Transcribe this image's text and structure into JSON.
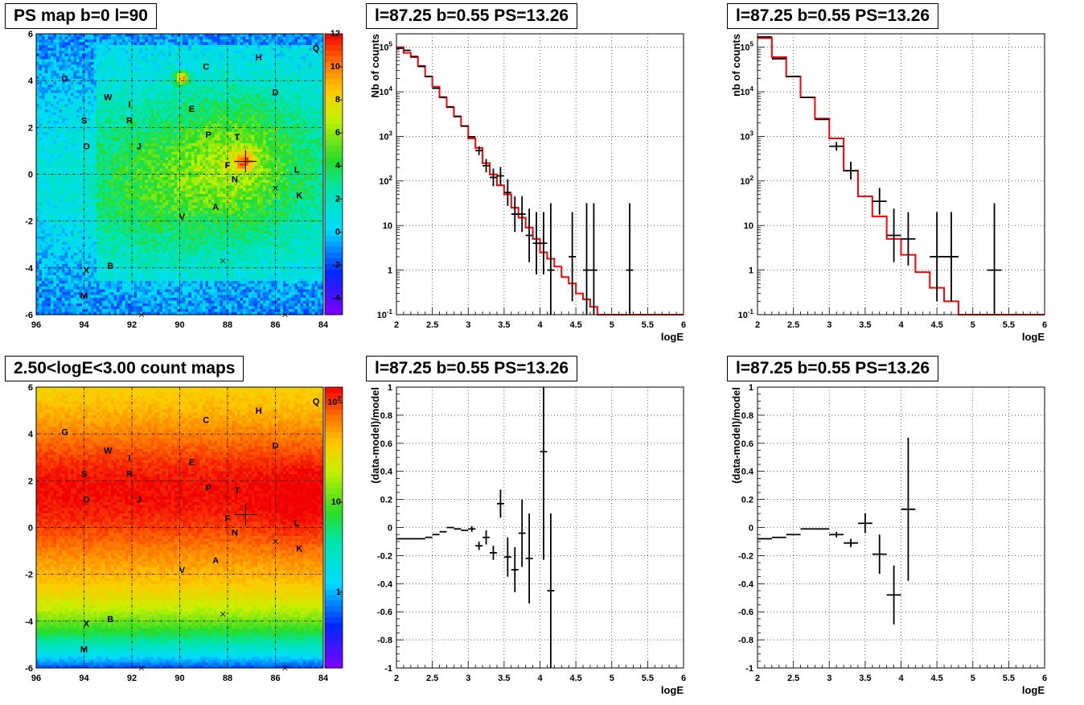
{
  "titles": {
    "map_top": "PS map b=0 l=90",
    "spec_top1": "l=87.25 b=0.55 PS=13.26",
    "spec_top2": "l=87.25 b=0.55 PS=13.26",
    "map_bottom": "2.50<logE<3.00 count maps",
    "res_bot1": "l=87.25 b=0.55 PS=13.26",
    "res_bot2": "l=87.25 b=0.55 PS=13.26"
  },
  "colors": {
    "model": "#ff0000",
    "data": "#000000",
    "frame": "#000000"
  },
  "chart_data": [
    {
      "type": "heatmap",
      "panel": "map_top",
      "title": "PS map b=0 l=90",
      "xlim": [
        96,
        84
      ],
      "ylim": [
        -6,
        6
      ],
      "xticks": [
        "96",
        "94",
        "92",
        "90",
        "88",
        "86",
        "84"
      ],
      "yticks": [
        "-6",
        "-4",
        "-2",
        "0",
        "2",
        "4",
        "6"
      ],
      "zlim": [
        -5,
        12
      ],
      "zticks": [
        "-4",
        "-2",
        "0",
        "2",
        "4",
        "6",
        "8",
        "10",
        "12"
      ],
      "sources": [
        {
          "label": "G",
          "l": 94.8,
          "b": 4.1
        },
        {
          "label": "C",
          "l": 88.9,
          "b": 4.6
        },
        {
          "label": "H",
          "l": 86.7,
          "b": 5.0
        },
        {
          "label": "Q",
          "l": 84.3,
          "b": 5.4
        },
        {
          "label": "W",
          "l": 93.0,
          "b": 3.3
        },
        {
          "label": "I",
          "l": 92.1,
          "b": 3.0
        },
        {
          "label": "E",
          "l": 89.5,
          "b": 2.8
        },
        {
          "label": "D",
          "l": 86.0,
          "b": 3.5
        },
        {
          "label": "S",
          "l": 94.0,
          "b": 2.3
        },
        {
          "label": "R",
          "l": 92.1,
          "b": 2.3
        },
        {
          "label": "P",
          "l": 88.8,
          "b": 1.7
        },
        {
          "label": "T",
          "l": 87.6,
          "b": 1.6
        },
        {
          "label": "O",
          "l": 93.9,
          "b": 1.2
        },
        {
          "label": "J",
          "l": 91.7,
          "b": 1.2
        },
        {
          "label": "F",
          "l": 88.0,
          "b": 0.4
        },
        {
          "label": "L",
          "l": 85.1,
          "b": 0.2
        },
        {
          "label": "N",
          "l": 87.7,
          "b": -0.2
        },
        {
          "label": "K",
          "l": 85.0,
          "b": -0.9
        },
        {
          "label": "A",
          "l": 88.5,
          "b": -1.4
        },
        {
          "label": "V",
          "l": 89.9,
          "b": -1.8
        },
        {
          "label": "B",
          "l": 92.9,
          "b": -3.9
        },
        {
          "label": "X",
          "l": 93.9,
          "b": -4.1
        },
        {
          "label": "M",
          "l": 94.0,
          "b": -5.2
        }
      ],
      "hot_spots": [
        {
          "l": 89.9,
          "b": 4.1
        }
      ]
    },
    {
      "type": "line",
      "panel": "spec_top1",
      "title": "l=87.25 b=0.55 PS=13.26",
      "xlabel": "logE",
      "ylabel": "Nb of counts",
      "xlim": [
        2,
        6
      ],
      "ylim": [
        0.1,
        200000
      ],
      "yscale": "log",
      "xticks": [
        "2",
        "2.5",
        "3",
        "3.5",
        "4",
        "4.5",
        "5",
        "5.5",
        "6"
      ],
      "yticks": [
        "10^-1",
        "1",
        "10",
        "10^2",
        "10^3",
        "10^4",
        "10^5"
      ],
      "model": {
        "edges": [
          2,
          2.1,
          2.2,
          2.3,
          2.4,
          2.5,
          2.6,
          2.7,
          2.8,
          2.9,
          3.0,
          3.1,
          3.2,
          3.3,
          3.4,
          3.5,
          3.6,
          3.7,
          3.8,
          3.9,
          4.0,
          4.1,
          4.2,
          4.3,
          4.4,
          4.5,
          4.6,
          4.7,
          4.8,
          4.9,
          5.0,
          6.0
        ],
        "values": [
          100000,
          75000,
          60000,
          38000,
          22000,
          13000,
          7500,
          4500,
          2800,
          1700,
          900,
          550,
          250,
          140,
          80,
          50,
          25,
          15,
          9,
          5,
          2.5,
          1.8,
          1.2,
          0.7,
          0.5,
          0.3,
          0.22,
          0.15,
          0.1,
          0.1,
          0.1
        ]
      },
      "data": [
        {
          "x": 2.05,
          "y": 95000,
          "dx": 0.05,
          "dy": 0.0
        },
        {
          "x": 2.15,
          "y": 85000,
          "dx": 0.05,
          "dy": 0.0
        },
        {
          "x": 2.25,
          "y": 62000,
          "dx": 0.05,
          "dy": 0.0
        },
        {
          "x": 2.35,
          "y": 37000,
          "dx": 0.05,
          "dy": 0.0
        },
        {
          "x": 2.45,
          "y": 22000,
          "dx": 0.05,
          "dy": 0.0
        },
        {
          "x": 2.55,
          "y": 12000,
          "dx": 0.05,
          "dy": 0.0
        },
        {
          "x": 2.65,
          "y": 7600,
          "dx": 0.05,
          "dy": 0.0
        },
        {
          "x": 2.75,
          "y": 4600,
          "dx": 0.05,
          "dy": 0.0
        },
        {
          "x": 2.85,
          "y": 2800,
          "dx": 0.05,
          "dy": 0.0
        },
        {
          "x": 2.95,
          "y": 1700,
          "dx": 0.05,
          "dy": 0.0
        },
        {
          "x": 3.05,
          "y": 980,
          "dx": 0.05,
          "dy": 0.0
        },
        {
          "x": 3.15,
          "y": 480,
          "dx": 0.05,
          "dy": 0.1
        },
        {
          "x": 3.25,
          "y": 220,
          "dx": 0.05,
          "dy": 0.15
        },
        {
          "x": 3.35,
          "y": 120,
          "dx": 0.05,
          "dy": 0.2
        },
        {
          "x": 3.45,
          "y": 130,
          "dx": 0.05,
          "dy": 0.2
        },
        {
          "x": 3.55,
          "y": 55,
          "dx": 0.05,
          "dy": 0.3
        },
        {
          "x": 3.65,
          "y": 18,
          "dx": 0.05,
          "dy": 0.4
        },
        {
          "x": 3.75,
          "y": 18,
          "dx": 0.05,
          "dy": 0.4
        },
        {
          "x": 3.85,
          "y": 6,
          "dx": 0.05,
          "dy": 0.6
        },
        {
          "x": 3.95,
          "y": 4,
          "dx": 0.05,
          "dy": 0.7
        },
        {
          "x": 4.05,
          "y": 4,
          "dx": 0.05,
          "dy": 0.7
        },
        {
          "x": 4.15,
          "y": 1,
          "dx": 0.05,
          "dy": 1.5
        },
        {
          "x": 4.45,
          "y": 2,
          "dx": 0.05,
          "dy": 1.0
        },
        {
          "x": 4.65,
          "y": 1,
          "dx": 0.05,
          "dy": 1.5
        },
        {
          "x": 4.75,
          "y": 1,
          "dx": 0.05,
          "dy": 1.5
        },
        {
          "x": 5.25,
          "y": 1,
          "dx": 0.05,
          "dy": 1.5
        }
      ]
    },
    {
      "type": "line",
      "panel": "spec_top2",
      "title": "l=87.25 b=0.55 PS=13.26",
      "xlabel": "logE",
      "ylabel": "nb of counts",
      "xlim": [
        2,
        6
      ],
      "ylim": [
        0.1,
        200000
      ],
      "yscale": "log",
      "xticks": [
        "2",
        "2.5",
        "3",
        "3.5",
        "4",
        "4.5",
        "5",
        "5.5",
        "6"
      ],
      "yticks": [
        "10^-1",
        "1",
        "10",
        "10^2",
        "10^3",
        "10^4",
        "10^5"
      ],
      "model": {
        "edges": [
          2,
          2.2,
          2.4,
          2.6,
          2.8,
          3.0,
          3.2,
          3.4,
          3.6,
          3.8,
          4.0,
          4.2,
          4.4,
          4.6,
          4.8,
          5.0,
          6.0
        ],
        "values": [
          160000,
          60000,
          22000,
          7500,
          2500,
          900,
          170,
          45,
          16,
          5,
          2.2,
          0.9,
          0.4,
          0.2,
          0.1,
          0.1
        ]
      },
      "data": [
        {
          "x": 2.1,
          "y": 170000,
          "dx": 0.1,
          "dy": 0.0
        },
        {
          "x": 2.3,
          "y": 55000,
          "dx": 0.1,
          "dy": 0.0
        },
        {
          "x": 2.5,
          "y": 22000,
          "dx": 0.1,
          "dy": 0.0
        },
        {
          "x": 2.7,
          "y": 7500,
          "dx": 0.1,
          "dy": 0.0
        },
        {
          "x": 2.9,
          "y": 2400,
          "dx": 0.1,
          "dy": 0.0
        },
        {
          "x": 3.1,
          "y": 600,
          "dx": 0.1,
          "dy": 0.1
        },
        {
          "x": 3.3,
          "y": 170,
          "dx": 0.1,
          "dy": 0.2
        },
        {
          "x": 3.7,
          "y": 35,
          "dx": 0.1,
          "dy": 0.3
        },
        {
          "x": 3.9,
          "y": 6,
          "dx": 0.1,
          "dy": 0.6
        },
        {
          "x": 4.1,
          "y": 5,
          "dx": 0.1,
          "dy": 0.6
        },
        {
          "x": 4.5,
          "y": 2,
          "dx": 0.1,
          "dy": 1.0
        },
        {
          "x": 4.7,
          "y": 2,
          "dx": 0.1,
          "dy": 1.0
        },
        {
          "x": 5.3,
          "y": 1,
          "dx": 0.1,
          "dy": 1.5
        }
      ]
    },
    {
      "type": "heatmap",
      "panel": "map_bottom",
      "title": "2.50<logE<3.00 count maps",
      "xlim": [
        96,
        84
      ],
      "ylim": [
        -6,
        6
      ],
      "xticks": [
        "96",
        "94",
        "92",
        "90",
        "88",
        "86",
        "84"
      ],
      "yticks": [
        "-6",
        "-4",
        "-2",
        "0",
        "2",
        "4",
        "6"
      ],
      "zscale": "log",
      "zticks": [
        "1",
        "10",
        "10^2"
      ]
    },
    {
      "type": "scatter",
      "panel": "res_bot1",
      "title": "l=87.25 b=0.55 PS=13.26",
      "xlabel": "logE",
      "ylabel": "(data-model)/model",
      "xlim": [
        2,
        6
      ],
      "ylim": [
        -1,
        1
      ],
      "xticks": [
        "2",
        "2.5",
        "3",
        "3.5",
        "4",
        "4.5",
        "5",
        "5.5",
        "6"
      ],
      "yticks": [
        "-1",
        "-0.8",
        "-0.6",
        "-0.4",
        "-0.2",
        "0",
        "0.2",
        "0.4",
        "0.6",
        "0.8",
        "1"
      ],
      "data": [
        {
          "x": 2.05,
          "y": -0.08,
          "dx": 0.05,
          "dy": 0.0
        },
        {
          "x": 2.15,
          "y": -0.08,
          "dx": 0.05,
          "dy": 0.0
        },
        {
          "x": 2.25,
          "y": -0.08,
          "dx": 0.05,
          "dy": 0.0
        },
        {
          "x": 2.35,
          "y": -0.08,
          "dx": 0.05,
          "dy": 0.0
        },
        {
          "x": 2.45,
          "y": -0.07,
          "dx": 0.05,
          "dy": 0.0
        },
        {
          "x": 2.55,
          "y": -0.05,
          "dx": 0.05,
          "dy": 0.0
        },
        {
          "x": 2.65,
          "y": -0.03,
          "dx": 0.05,
          "dy": 0.0
        },
        {
          "x": 2.75,
          "y": 0.0,
          "dx": 0.05,
          "dy": 0.0
        },
        {
          "x": 2.85,
          "y": -0.01,
          "dx": 0.05,
          "dy": 0.0
        },
        {
          "x": 2.95,
          "y": -0.02,
          "dx": 0.05,
          "dy": 0.0
        },
        {
          "x": 3.05,
          "y": -0.01,
          "dx": 0.05,
          "dy": 0.02
        },
        {
          "x": 3.15,
          "y": -0.13,
          "dx": 0.05,
          "dy": 0.03
        },
        {
          "x": 3.25,
          "y": -0.07,
          "dx": 0.05,
          "dy": 0.05
        },
        {
          "x": 3.35,
          "y": -0.18,
          "dx": 0.05,
          "dy": 0.05
        },
        {
          "x": 3.45,
          "y": 0.17,
          "dx": 0.05,
          "dy": 0.1
        },
        {
          "x": 3.55,
          "y": -0.21,
          "dx": 0.05,
          "dy": 0.14
        },
        {
          "x": 3.65,
          "y": -0.3,
          "dx": 0.05,
          "dy": 0.16
        },
        {
          "x": 3.75,
          "y": -0.04,
          "dx": 0.05,
          "dy": 0.24
        },
        {
          "x": 3.85,
          "y": -0.22,
          "dx": 0.05,
          "dy": 0.32
        },
        {
          "x": 4.05,
          "y": 0.54,
          "dx": 0.05,
          "dy": 0.77
        },
        {
          "x": 4.15,
          "y": -0.45,
          "dx": 0.05,
          "dy": 0.55
        }
      ]
    },
    {
      "type": "scatter",
      "panel": "res_bot2",
      "title": "l=87.25 b=0.55 PS=13.26",
      "xlabel": "logE",
      "ylabel": "(data-model)/model",
      "xlim": [
        2,
        6
      ],
      "ylim": [
        -1,
        1
      ],
      "xticks": [
        "2",
        "2.5",
        "3",
        "3.5",
        "4",
        "4.5",
        "5",
        "5.5",
        "6"
      ],
      "yticks": [
        "-1",
        "-0.8",
        "-0.6",
        "-0.4",
        "-0.2",
        "0",
        "0.2",
        "0.4",
        "0.6",
        "0.8",
        "1"
      ],
      "data": [
        {
          "x": 2.1,
          "y": -0.08,
          "dx": 0.1,
          "dy": 0.0
        },
        {
          "x": 2.3,
          "y": -0.07,
          "dx": 0.1,
          "dy": 0.0
        },
        {
          "x": 2.5,
          "y": -0.05,
          "dx": 0.1,
          "dy": 0.0
        },
        {
          "x": 2.7,
          "y": -0.01,
          "dx": 0.1,
          "dy": 0.0
        },
        {
          "x": 2.9,
          "y": -0.01,
          "dx": 0.1,
          "dy": 0.0
        },
        {
          "x": 3.1,
          "y": -0.05,
          "dx": 0.1,
          "dy": 0.02
        },
        {
          "x": 3.3,
          "y": -0.11,
          "dx": 0.1,
          "dy": 0.03
        },
        {
          "x": 3.5,
          "y": 0.03,
          "dx": 0.1,
          "dy": 0.07
        },
        {
          "x": 3.7,
          "y": -0.19,
          "dx": 0.1,
          "dy": 0.14
        },
        {
          "x": 3.9,
          "y": -0.48,
          "dx": 0.1,
          "dy": 0.21
        },
        {
          "x": 4.1,
          "y": 0.13,
          "dx": 0.1,
          "dy": 0.51
        }
      ]
    }
  ]
}
